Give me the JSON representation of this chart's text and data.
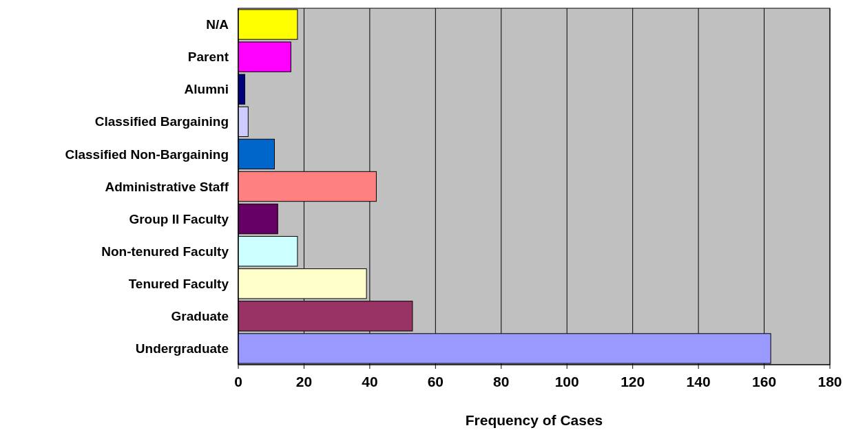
{
  "chart_data": {
    "type": "bar",
    "orientation": "horizontal",
    "xlabel": "Frequency of Cases",
    "categories": [
      "N/A",
      "Parent",
      "Alumni",
      "Classified Bargaining",
      "Classified Non-Bargaining",
      "Administrative Staff",
      "Group II Faculty",
      "Non-tenured Faculty",
      "Tenured Faculty",
      "Graduate",
      "Undergraduate"
    ],
    "values": [
      18,
      16,
      2,
      3,
      11,
      42,
      12,
      18,
      39,
      53,
      162
    ],
    "colors": [
      "#ffff00",
      "#ff00ff",
      "#000080",
      "#ccccff",
      "#0066cc",
      "#ff8080",
      "#660066",
      "#ccffff",
      "#ffffcc",
      "#993366",
      "#9999ff"
    ],
    "xlim": [
      0,
      180
    ],
    "xticks": [
      0,
      20,
      40,
      60,
      80,
      100,
      120,
      140,
      160,
      180
    ],
    "grid": "x"
  }
}
